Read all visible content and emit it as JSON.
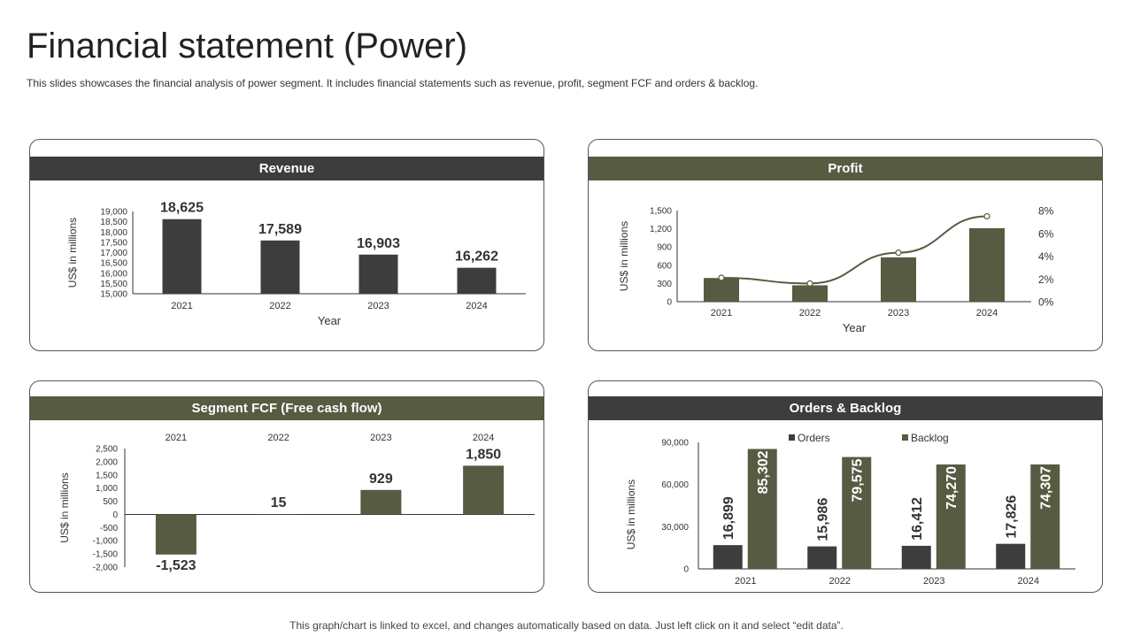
{
  "page": {
    "title": "Financial statement (Power)",
    "subtitle": "This slides showcases the financial analysis of power segment. It includes financial statements such as revenue, profit, segment FCF and orders & backlog.",
    "footer": "This graph/chart is linked to excel, and changes automatically based on data. Just left click on it and select “edit data”."
  },
  "colors": {
    "dark": "#3d3d3d",
    "olive": "#575b42",
    "axis": "#333333"
  },
  "chart_data": [
    {
      "id": "revenue",
      "type": "bar",
      "title": "Revenue",
      "header_color": "#3d3d3d",
      "categories": [
        "2021",
        "2022",
        "2023",
        "2024"
      ],
      "values": [
        18625,
        17589,
        16903,
        16262
      ],
      "data_labels": [
        "18,625",
        "17,589",
        "16,903",
        "16,262"
      ],
      "ylim": [
        15000,
        19000
      ],
      "yticks": [
        "15,000",
        "15,500",
        "16,000",
        "16,500",
        "17,000",
        "17,500",
        "18,000",
        "18,500",
        "19,000"
      ],
      "ylabel": "US$ in millions",
      "xlabel": "Year",
      "bar_color": "#3d3d3d"
    },
    {
      "id": "profit",
      "type": "bar+line",
      "title": "Profit",
      "header_color": "#575b42",
      "categories": [
        "2021",
        "2022",
        "2023",
        "2024"
      ],
      "bar_values": [
        390,
        270,
        730,
        1210
      ],
      "line_values_pct": [
        2.1,
        1.6,
        4.3,
        7.5
      ],
      "ylim": [
        0,
        1500
      ],
      "yticks": [
        "0",
        "300",
        "600",
        "900",
        "1,200",
        "1,500"
      ],
      "y2lim": [
        0,
        8
      ],
      "y2ticks": [
        "0%",
        "2%",
        "4%",
        "6%",
        "8%"
      ],
      "ylabel": "US$ in millions",
      "xlabel": "Year",
      "bar_color": "#575b42",
      "line_color": "#575b42"
    },
    {
      "id": "fcf",
      "type": "bar",
      "title": "Segment FCF (Free cash flow)",
      "header_color": "#575b42",
      "categories": [
        "2021",
        "2022",
        "2023",
        "2024"
      ],
      "values": [
        -1523,
        15,
        929,
        1850
      ],
      "data_labels": [
        "-1,523",
        "15",
        "929",
        "1,850"
      ],
      "ylim": [
        -2000,
        2500
      ],
      "yticks": [
        "-2,000",
        "-1,500",
        "-1,000",
        "-500",
        "0",
        "500",
        "1,000",
        "1,500",
        "2,000",
        "2,500"
      ],
      "ylabel": "US$ in millions",
      "bar_color": "#575b42"
    },
    {
      "id": "orders",
      "type": "bar",
      "title": "Orders & Backlog",
      "header_color": "#3d3d3d",
      "categories": [
        "2021",
        "2022",
        "2023",
        "2024"
      ],
      "series": [
        {
          "name": "Orders",
          "values": [
            16899,
            15986,
            16412,
            17826
          ],
          "labels": [
            "16,899",
            "15,986",
            "16,412",
            "17,826"
          ],
          "color": "#3d3d3d"
        },
        {
          "name": "Backlog",
          "values": [
            85302,
            79575,
            74270,
            74307
          ],
          "labels": [
            "85,302",
            "79,575",
            "74,270",
            "74,307"
          ],
          "color": "#575b42"
        }
      ],
      "ylim": [
        0,
        90000
      ],
      "yticks": [
        "0",
        "30,000",
        "60,000",
        "90,000"
      ],
      "ylabel": "US$ in millions",
      "legend": "top"
    }
  ]
}
